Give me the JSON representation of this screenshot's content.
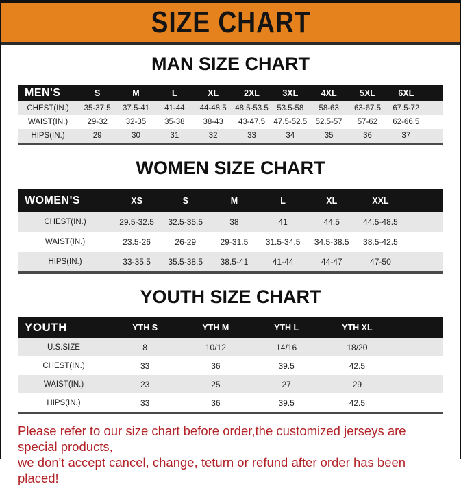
{
  "page": {
    "title": "SIZE CHART",
    "banner_color": "#E5821E",
    "footer_color": "#B22328",
    "footer_line1": "Please refer to our size chart before order,the customized jerseys are special products,",
    "footer_line2": "we don't accept cancel, change, teturn or refund after order has been placed!"
  },
  "sections": [
    {
      "heading": "MAN SIZE CHART",
      "header_label": "MEN'S",
      "columns": [
        "S",
        "M",
        "L",
        "XL",
        "2XL",
        "3XL",
        "4XL",
        "5XL",
        "6XL"
      ],
      "rows": [
        {
          "label": "CHEST(IN.)",
          "values": [
            "35-37.5",
            "37.5-41",
            "41-44",
            "44-48.5",
            "48.5-53.5",
            "53.5-58",
            "58-63",
            "63-67.5",
            "67.5-72"
          ]
        },
        {
          "label": "WAIST(IN.)",
          "values": [
            "29-32",
            "32-35",
            "35-38",
            "38-43",
            "43-47.5",
            "47.5-52.5",
            "52.5-57",
            "57-62",
            "62-66.5"
          ]
        },
        {
          "label": "HIPS(IN.)",
          "values": [
            "29",
            "30",
            "31",
            "32",
            "33",
            "34",
            "35",
            "36",
            "37"
          ]
        }
      ]
    },
    {
      "heading": "WOMEN SIZE CHART",
      "header_label": "WOMEN'S",
      "columns": [
        "XS",
        "S",
        "M",
        "L",
        "XL",
        "XXL"
      ],
      "rows": [
        {
          "label": "CHEST(IN.)",
          "values": [
            "29.5-32.5",
            "32.5-35.5",
            "38",
            "41",
            "44.5",
            "44.5-48.5"
          ]
        },
        {
          "label": "WAIST(IN.)",
          "values": [
            "23.5-26",
            "26-29",
            "29-31.5",
            "31.5-34.5",
            "34.5-38.5",
            "38.5-42.5"
          ]
        },
        {
          "label": "HIPS(IN.)",
          "values": [
            "33-35.5",
            "35.5-38.5",
            "38.5-41",
            "41-44",
            "44-47",
            "47-50"
          ]
        }
      ]
    },
    {
      "heading": "YOUTH SIZE CHART",
      "header_label": "YOUTH",
      "columns": [
        "YTH S",
        "YTH M",
        "YTH L",
        "YTH XL"
      ],
      "rows": [
        {
          "label": "U.S.SIZE",
          "values": [
            "8",
            "10/12",
            "14/16",
            "18/20"
          ]
        },
        {
          "label": "CHEST(IN.)",
          "values": [
            "33",
            "36",
            "39.5",
            "42.5"
          ]
        },
        {
          "label": "WAIST(IN.)",
          "values": [
            "23",
            "25",
            "27",
            "29"
          ]
        },
        {
          "label": "HIPS(IN.)",
          "values": [
            "33",
            "36",
            "39.5",
            "42.5"
          ]
        }
      ]
    }
  ]
}
